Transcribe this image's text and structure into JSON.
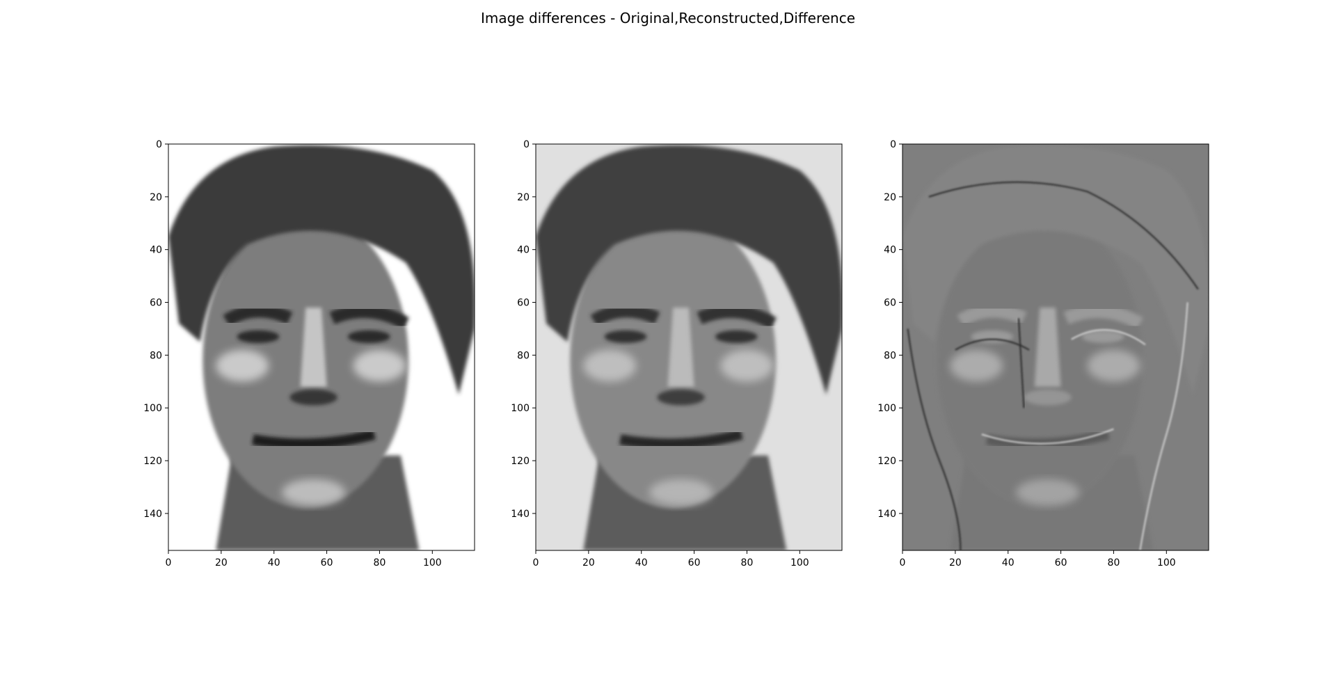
{
  "figure": {
    "title": "Image differences - Original,Reconstructed,Difference"
  },
  "chart_data": [
    {
      "type": "heatmap",
      "colormap": "grayscale",
      "image_width": 116,
      "image_height": 154,
      "xlim": [
        0,
        116
      ],
      "ylim": [
        154,
        0
      ],
      "xticks": [
        0,
        20,
        40,
        60,
        80,
        100
      ],
      "yticks": [
        0,
        20,
        40,
        60,
        80,
        100,
        120,
        140
      ],
      "background": "#ffffff",
      "tone": {
        "skin": "#7d7d7d",
        "hair": "#3a3a3a",
        "eyes": "#2a2a2a",
        "mouth": "#1f1f1f",
        "highlight": "#d8d8d8"
      }
    },
    {
      "type": "heatmap",
      "colormap": "grayscale",
      "image_width": 116,
      "image_height": 154,
      "xlim": [
        0,
        116
      ],
      "ylim": [
        154,
        0
      ],
      "xticks": [
        0,
        20,
        40,
        60,
        80,
        100
      ],
      "yticks": [
        0,
        20,
        40,
        60,
        80,
        100,
        120,
        140
      ],
      "background": "#e0e0e0",
      "tone": {
        "skin": "#888888",
        "hair": "#404040",
        "eyes": "#333333",
        "mouth": "#262626",
        "highlight": "#c8c8c8"
      }
    },
    {
      "type": "heatmap",
      "colormap": "grayscale",
      "image_width": 116,
      "image_height": 154,
      "xlim": [
        0,
        116
      ],
      "ylim": [
        154,
        0
      ],
      "xticks": [
        0,
        20,
        40,
        60,
        80,
        100
      ],
      "yticks": [
        0,
        20,
        40,
        60,
        80,
        100,
        120,
        140
      ],
      "background": "#7f7f7f",
      "tone": {
        "skin": "#7a7a7a",
        "hair": "#848484",
        "eyes": "#9a9a9a",
        "mouth": "#5a5a5a",
        "highlight": "#b5b5b5"
      }
    }
  ]
}
